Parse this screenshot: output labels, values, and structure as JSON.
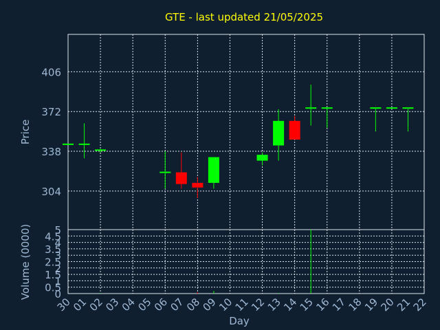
{
  "chart_data": {
    "type": "candlestick",
    "title": "GTE - last updated 21/05/2025",
    "xlabel": "Day",
    "ylabel": "Price",
    "volume_ylabel": "Volume (0000)",
    "categories": [
      "30",
      "01",
      "02",
      "03",
      "04",
      "05",
      "06",
      "07",
      "08",
      "09",
      "10",
      "11",
      "12",
      "13",
      "14",
      "15",
      "16",
      "17",
      "18",
      "19",
      "20",
      "21",
      "22"
    ],
    "open": [
      344,
      344,
      339,
      null,
      null,
      null,
      320,
      320,
      311,
      311,
      null,
      null,
      330,
      343,
      364,
      375,
      375,
      null,
      null,
      375,
      375,
      375,
      null
    ],
    "high": [
      344,
      362,
      340,
      null,
      null,
      null,
      338,
      337,
      316,
      333,
      null,
      null,
      337,
      374,
      368,
      395,
      375,
      null,
      null,
      375,
      375,
      375,
      null
    ],
    "low": [
      344,
      332,
      337,
      null,
      null,
      null,
      306,
      306,
      298,
      306,
      null,
      null,
      326,
      330,
      348,
      360,
      358,
      null,
      null,
      355,
      375,
      355,
      null
    ],
    "close": [
      344,
      344,
      339,
      null,
      null,
      null,
      320,
      310,
      307,
      333,
      null,
      null,
      335,
      364,
      348,
      375,
      375,
      null,
      null,
      375,
      375,
      375,
      null
    ],
    "volume": [
      0,
      0,
      0.05,
      null,
      null,
      null,
      0,
      0,
      0.1,
      0.2,
      null,
      null,
      0,
      0.05,
      0,
      5,
      0,
      null,
      null,
      0,
      0,
      0,
      null
    ],
    "ylim": [
      271,
      438
    ],
    "yticks": [
      304,
      338,
      372,
      406
    ],
    "volume_ylim": [
      0,
      5
    ],
    "volume_yticks": [
      0,
      0.5,
      1,
      1.5,
      2,
      2.5,
      3,
      3.5,
      4,
      4.5,
      5
    ],
    "up_color": "#00ff00",
    "down_color": "#ff0000",
    "title_color": "#ffff00",
    "grid": true
  }
}
